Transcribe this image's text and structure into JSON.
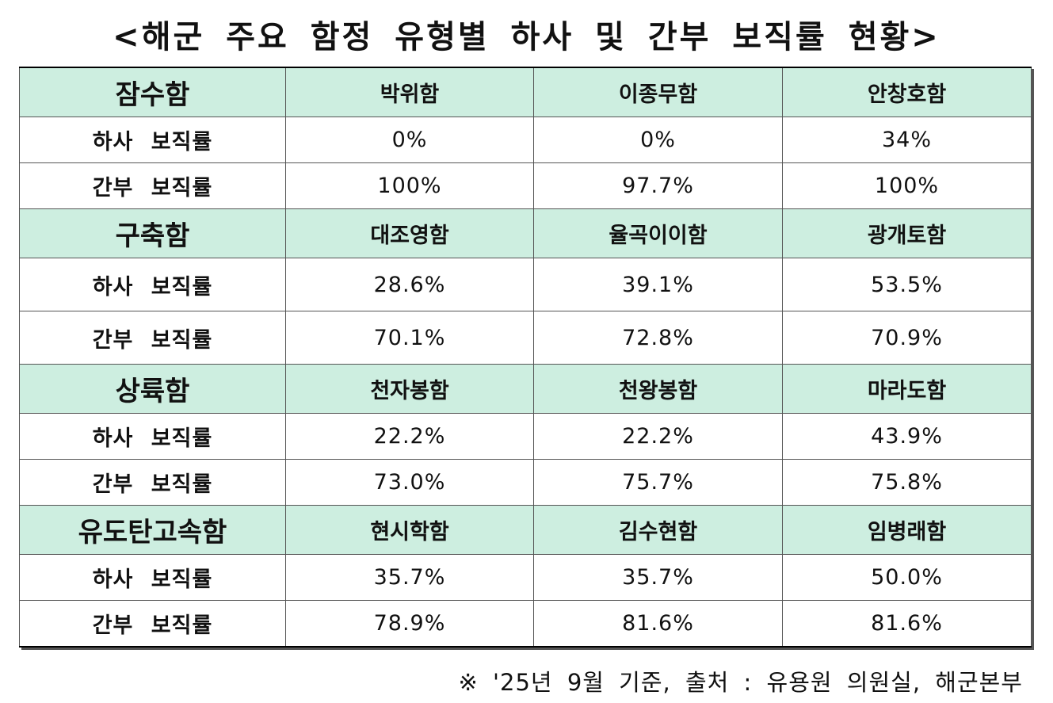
{
  "title": "<해군 주요 함정 유형별 하사 및 간부 보직률 현황>",
  "groups": [
    {
      "class": "잠수함",
      "ships": [
        "박위함",
        "이종무함",
        "안창호함"
      ],
      "rows": [
        {
          "label": "하사 보직률",
          "values": [
            "0%",
            "0%",
            "34%"
          ]
        },
        {
          "label": "간부 보직률",
          "values": [
            "100%",
            "97.7%",
            "100%"
          ]
        }
      ]
    },
    {
      "class": "구축함",
      "ships": [
        "대조영함",
        "율곡이이함",
        "광개토함"
      ],
      "rows": [
        {
          "label": "하사 보직률",
          "values": [
            "28.6%",
            "39.1%",
            "53.5%"
          ]
        },
        {
          "label": "간부 보직률",
          "values": [
            "70.1%",
            "72.8%",
            "70.9%"
          ]
        }
      ]
    },
    {
      "class": "상륙함",
      "ships": [
        "천자봉함",
        "천왕봉함",
        "마라도함"
      ],
      "rows": [
        {
          "label": "하사 보직률",
          "values": [
            "22.2%",
            "22.2%",
            "43.9%"
          ]
        },
        {
          "label": "간부 보직률",
          "values": [
            "73.0%",
            "75.7%",
            "75.8%"
          ]
        }
      ]
    },
    {
      "class": "유도탄고속함",
      "ships": [
        "현시학함",
        "김수현함",
        "임병래함"
      ],
      "rows": [
        {
          "label": "하사 보직률",
          "values": [
            "35.7%",
            "35.7%",
            "50.0%"
          ]
        },
        {
          "label": "간부 보직률",
          "values": [
            "78.9%",
            "81.6%",
            "81.6%"
          ]
        }
      ]
    }
  ],
  "note": "※ '25년 9월 기준, 출처 : 유용원 의원실, 해군본부",
  "colors": {
    "header_bg": "#cdeee0"
  }
}
